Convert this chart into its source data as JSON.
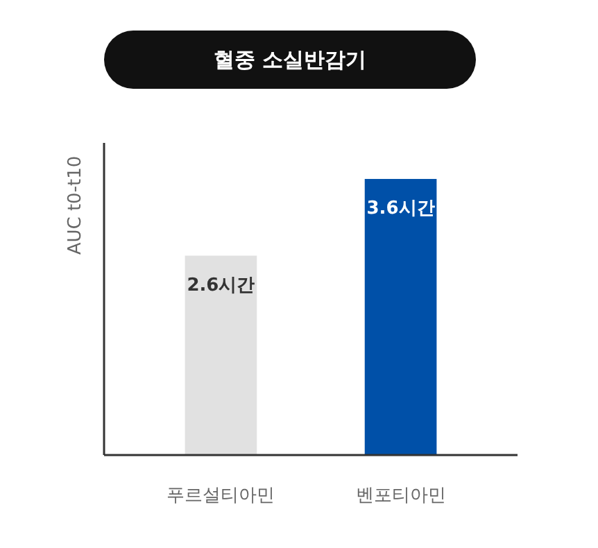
{
  "chart_data": {
    "type": "bar",
    "title": "혈중 소실반감기",
    "ylabel": "AUC t0-t10",
    "categories": [
      "푸르설티아민",
      "벤포티아민"
    ],
    "values": [
      2.6,
      3.6
    ],
    "colors": [
      "#e1e1e1",
      "#0050a8"
    ],
    "value_labels": [
      "2.6시간",
      "3.6시간"
    ],
    "ylim": [
      0,
      4.07
    ],
    "tick_labels": "x"
  }
}
